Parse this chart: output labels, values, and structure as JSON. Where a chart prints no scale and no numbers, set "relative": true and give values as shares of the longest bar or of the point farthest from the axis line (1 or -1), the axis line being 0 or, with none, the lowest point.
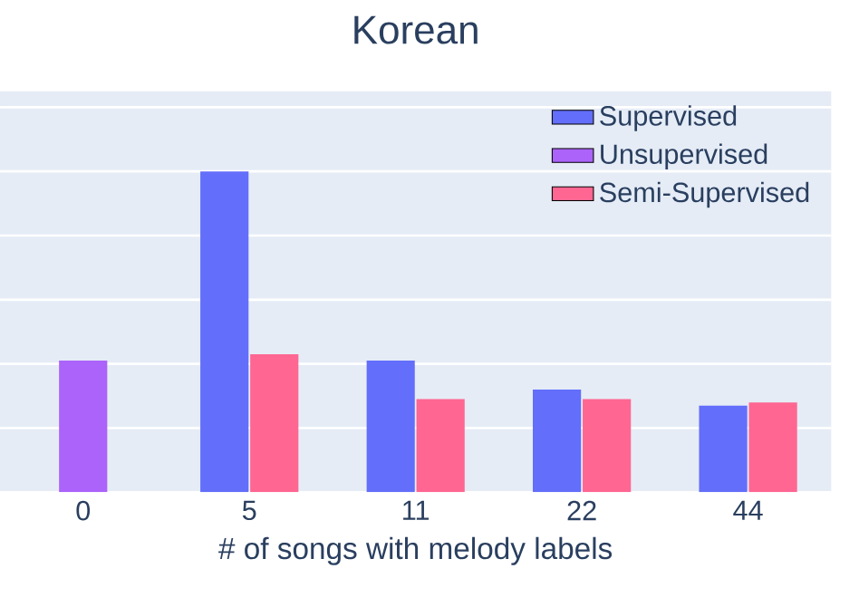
{
  "chart_data": {
    "type": "bar",
    "title": "Korean",
    "xlabel": "# of songs with melody labels",
    "categories": [
      "0",
      "5",
      "11",
      "22",
      "44"
    ],
    "relative": true,
    "grid": "y",
    "legend": "top right",
    "series": [
      {
        "name": "Supervised",
        "color": "#636efa",
        "values": [
          null,
          1,
          0.41,
          0.32,
          0.27
        ]
      },
      {
        "name": "Unsupervised",
        "color": "#ab63fa",
        "values": [
          0.41,
          null,
          null,
          null,
          null
        ]
      },
      {
        "name": "Semi-Supervised",
        "color": "#ff6692",
        "values": [
          null,
          0.43,
          0.29,
          0.29,
          0.28
        ]
      }
    ]
  }
}
